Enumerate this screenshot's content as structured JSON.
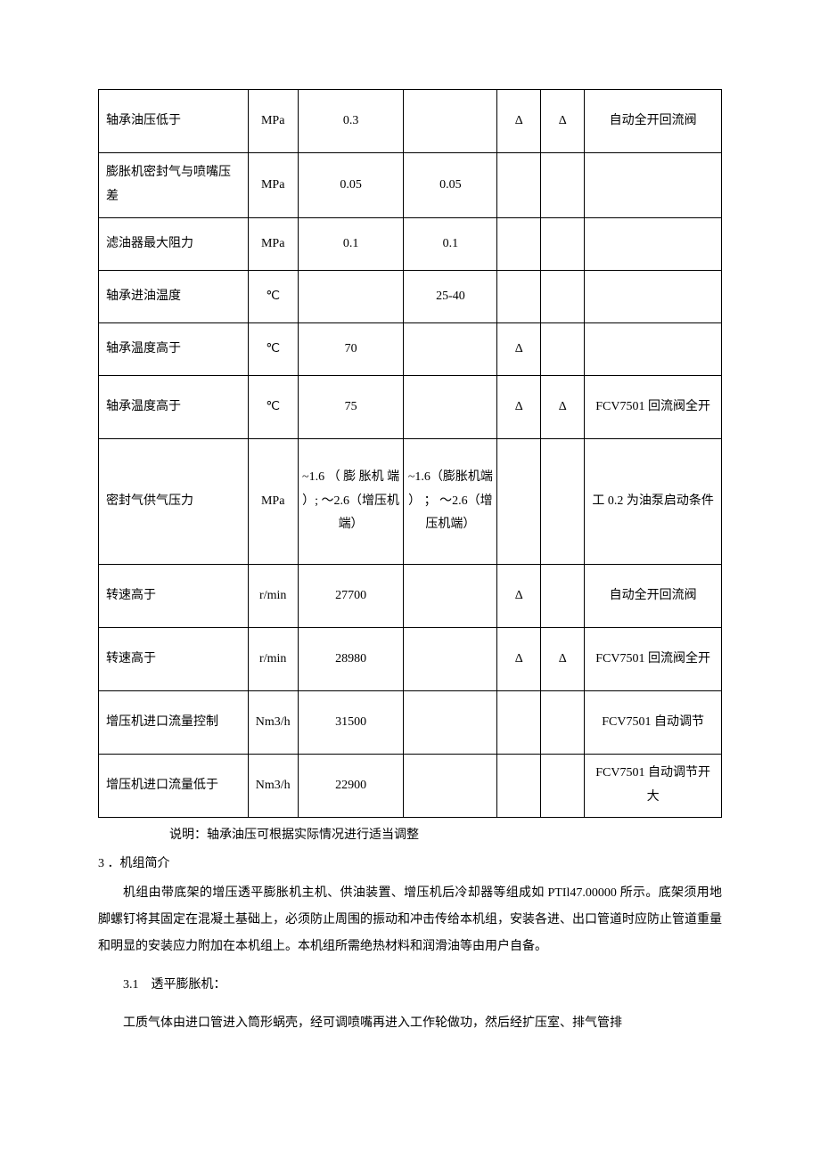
{
  "table": {
    "col_widths_pct": [
      24,
      8,
      17,
      15,
      7,
      7,
      22
    ],
    "rows": [
      {
        "cls": "row-h1",
        "cells": [
          "轴承油压低于",
          "MPa",
          "0.3",
          "",
          "Δ",
          "Δ",
          "自动全开回流阀"
        ]
      },
      {
        "cls": "row-h2",
        "cells": [
          "膨胀机密封气与喷嘴压差",
          "MPa",
          "0.05",
          "0.05",
          "",
          "",
          ""
        ]
      },
      {
        "cls": "row-h3",
        "cells": [
          "滤油器最大阻力",
          "MPa",
          "0.1",
          "0.1",
          "",
          "",
          ""
        ]
      },
      {
        "cls": "row-h4",
        "cells": [
          "轴承进油温度",
          "℃",
          "",
          "25-40",
          "",
          "",
          ""
        ]
      },
      {
        "cls": "row-h5",
        "cells": [
          "轴承温度高于",
          "℃",
          "70",
          "",
          "Δ",
          "",
          ""
        ]
      },
      {
        "cls": "row-h6",
        "cells": [
          "轴承温度高于",
          "℃",
          "75",
          "",
          "Δ",
          "Δ",
          "FCV7501 回流阀全开"
        ]
      },
      {
        "cls": "row-h7",
        "cells": [
          "密封气供气压力",
          "MPa",
          "~1.6 （ 膨 胀机 端 ）; ～2.6（增压机端）",
          "~1.6（膨胀机端 ） ； ～2.6（增压机端）",
          "",
          "",
          "工 0.2 为油泵启动条件"
        ]
      },
      {
        "cls": "row-h8",
        "cells": [
          "转速高于",
          "r/min",
          "27700",
          "",
          "Δ",
          "",
          "自动全开回流阀"
        ]
      },
      {
        "cls": "row-h9",
        "cells": [
          "转速高于",
          "r/min",
          "28980",
          "",
          "Δ",
          "Δ",
          "FCV7501 回流阀全开"
        ]
      },
      {
        "cls": "row-h10",
        "cells": [
          "增压机进口流量控制",
          "Nm3/h",
          "31500",
          "",
          "",
          "",
          "FCV7501 自动调节"
        ]
      },
      {
        "cls": "row-h11",
        "cells": [
          "增压机进口流量低于",
          "Nm3/h",
          "22900",
          "",
          "",
          "",
          "FCV7501 自动调节开大"
        ]
      }
    ]
  },
  "note": "说明：轴承油压可根据实际情况进行适当调整",
  "section_number": "3 ．机组简介",
  "section_text": "机组由带底架的增压透平膨胀机主机、供油装置、增压机后冷却器等组成如 PTIl47.00000 所示。底架须用地脚螺钉将其固定在混凝土基础上，必须防止周围的振动和冲击传给本机组，安装各进、出口管道时应防止管道重量和明显的安装应力附加在本机组上。本机组所需绝热材料和润滑油等由用户自备。",
  "sub_section": "3.1　透平膨胀机：",
  "sub_text": "工质气体由进口管进入筒形蜗壳，经可调喷嘴再进入工作轮做功，然后经扩压室、排气管排"
}
